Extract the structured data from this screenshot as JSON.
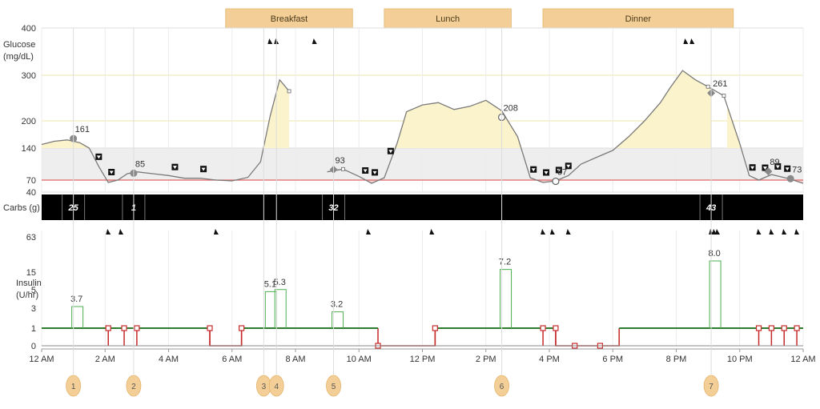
{
  "chart_data": {
    "type": "line",
    "meal_bands": [
      {
        "label": "Breakfast",
        "start": 6.0,
        "end": 10.0
      },
      {
        "label": "Lunch",
        "start": 11.0,
        "end": 15.0
      },
      {
        "label": "Dinner",
        "start": 16.0,
        "end": 22.0
      }
    ],
    "glucose": {
      "title": "Glucose",
      "unit": "(mg/dL)",
      "ticks": [
        {
          "value": 40,
          "label": "40",
          "color": "#c9a227"
        },
        {
          "value": 70,
          "label": "70",
          "color": "#c9a227"
        },
        {
          "value": 140,
          "label": "140",
          "color": "#333333"
        },
        {
          "value": 200,
          "label": "200",
          "color": "#333333"
        },
        {
          "value": 300,
          "label": "300",
          "color": "#333333"
        },
        {
          "value": 400,
          "label": "400",
          "color": "#c9a227"
        }
      ],
      "target_range": [
        70,
        140
      ],
      "low_line": 70,
      "series": [
        [
          0,
          148
        ],
        [
          0.4,
          155
        ],
        [
          0.8,
          158
        ],
        [
          1.2,
          152
        ],
        [
          1.5,
          140
        ],
        [
          1.8,
          100
        ],
        [
          2.1,
          64
        ],
        [
          2.4,
          70
        ],
        [
          2.7,
          84
        ],
        [
          3.0,
          88
        ],
        [
          3.5,
          84
        ],
        [
          4.0,
          80
        ],
        [
          4.5,
          74
        ],
        [
          5.0,
          74
        ],
        [
          5.5,
          70
        ],
        [
          6.0,
          68
        ],
        [
          6.5,
          76
        ],
        [
          6.9,
          110
        ],
        [
          7.2,
          210
        ],
        [
          7.5,
          290
        ],
        [
          7.8,
          265
        ],
        [
          9.0,
          88
        ],
        [
          9.5,
          94
        ],
        [
          10.0,
          78
        ],
        [
          10.4,
          62
        ],
        [
          10.8,
          75
        ],
        [
          11.2,
          150
        ],
        [
          11.5,
          220
        ],
        [
          12.0,
          235
        ],
        [
          12.5,
          240
        ],
        [
          13.0,
          225
        ],
        [
          13.5,
          232
        ],
        [
          14.0,
          245
        ],
        [
          14.5,
          222
        ],
        [
          15.0,
          165
        ],
        [
          15.4,
          75
        ],
        [
          15.8,
          64
        ],
        [
          16.2,
          68
        ],
        [
          16.6,
          80
        ],
        [
          17.0,
          105
        ],
        [
          17.5,
          120
        ],
        [
          18.0,
          135
        ],
        [
          18.5,
          165
        ],
        [
          19.0,
          200
        ],
        [
          19.5,
          240
        ],
        [
          19.8,
          272
        ],
        [
          20.2,
          310
        ],
        [
          20.6,
          290
        ],
        [
          21.0,
          275
        ],
        [
          21.5,
          255
        ],
        [
          22.0,
          150
        ],
        [
          22.3,
          80
        ],
        [
          22.6,
          70
        ],
        [
          23.0,
          82
        ],
        [
          23.5,
          74
        ],
        [
          24.0,
          62
        ]
      ],
      "fill_segments": [
        [
          0,
          1.5
        ],
        [
          6.8,
          7.8
        ],
        [
          11.1,
          15.1
        ],
        [
          17.5,
          21.1
        ],
        [
          21.6,
          22.1
        ]
      ],
      "low_fill_segments": [
        [
          1.9,
          2.5
        ],
        [
          5.2,
          6.2
        ],
        [
          10.2,
          10.7
        ],
        [
          15.4,
          16.4
        ],
        [
          22.4,
          24.0
        ]
      ],
      "readings": [
        {
          "time": 1.0,
          "value": 161,
          "label": "161",
          "symbol": "dot"
        },
        {
          "time": 2.9,
          "value": 85,
          "label": "85",
          "symbol": "dot"
        },
        {
          "time": 9.2,
          "value": 93,
          "label": "93",
          "symbol": "diamond"
        },
        {
          "time": 14.5,
          "value": 208,
          "label": "208",
          "symbol": "circle"
        },
        {
          "time": 16.2,
          "value": 67,
          "label": "67",
          "symbol": "circle"
        },
        {
          "time": 21.1,
          "value": 261,
          "label": "261",
          "symbol": "diamond"
        },
        {
          "time": 22.9,
          "value": 89,
          "label": "89",
          "symbol": "diamond"
        },
        {
          "time": 23.6,
          "value": 73,
          "label": "73",
          "symbol": "dot"
        }
      ],
      "low_markers": [
        1.8,
        2.2,
        4.2,
        5.1,
        10.2,
        10.5,
        11.0,
        15.5,
        15.9,
        16.3,
        16.6,
        22.4,
        22.8,
        23.2,
        23.5
      ],
      "bell_markers": [
        7.2,
        7.4,
        8.6,
        20.3,
        20.5
      ]
    },
    "carbs": {
      "label": "Carbs (g)",
      "entries": [
        {
          "time": 1.0,
          "value": "25"
        },
        {
          "time": 2.9,
          "value": "1"
        },
        {
          "time": 9.2,
          "value": "32"
        },
        {
          "time": 21.1,
          "value": "43"
        }
      ]
    },
    "insulin": {
      "title": "Insulin",
      "unit": "(U/hr)",
      "ticks": [
        "0",
        "1",
        "3",
        "5",
        "15",
        "63"
      ],
      "bell_markers": [
        2.1,
        2.5,
        5.5,
        10.3,
        12.3,
        15.8,
        16.1,
        16.6,
        21.1,
        21.2,
        21.3,
        22.6,
        23.0,
        23.4,
        23.8
      ],
      "basal_rate": 1,
      "basal_off": [
        [
          5.3,
          6.3
        ],
        [
          10.6,
          12.4
        ],
        [
          16.2,
          18.2
        ]
      ],
      "boluses": [
        {
          "time": 1.0,
          "value": 3.7,
          "label": "3.7"
        },
        {
          "time": 7.1,
          "value": 5.1,
          "label": "5.1"
        },
        {
          "time": 7.4,
          "value": 5.3,
          "label": "5.3"
        },
        {
          "time": 9.2,
          "value": 3.2,
          "label": "3.2"
        },
        {
          "time": 14.5,
          "value": 7.2,
          "label": "7.2"
        },
        {
          "time": 21.1,
          "value": 8.0,
          "label": "8.0"
        }
      ],
      "square_markers": [
        {
          "time": 2.1,
          "level": 1
        },
        {
          "time": 2.6,
          "level": 1
        },
        {
          "time": 3.0,
          "level": 1
        },
        {
          "time": 5.3,
          "level": 1
        },
        {
          "time": 6.3,
          "level": 1
        },
        {
          "time": 10.6,
          "level": 0
        },
        {
          "time": 12.4,
          "level": 1
        },
        {
          "time": 15.8,
          "level": 1
        },
        {
          "time": 16.2,
          "level": 1
        },
        {
          "time": 16.8,
          "level": 0
        },
        {
          "time": 17.6,
          "level": 0
        },
        {
          "time": 22.6,
          "level": 1
        },
        {
          "time": 23.0,
          "level": 1
        },
        {
          "time": 23.4,
          "level": 1
        },
        {
          "time": 23.8,
          "level": 1
        }
      ]
    },
    "x_axis": {
      "ticks": [
        "12 AM",
        "2 AM",
        "4 AM",
        "6 AM",
        "8 AM",
        "10 AM",
        "12 PM",
        "2 PM",
        "4 PM",
        "6 PM",
        "8 PM",
        "10 PM",
        "12 AM"
      ]
    },
    "event_markers": [
      {
        "time": 1.0,
        "label": "1"
      },
      {
        "time": 2.9,
        "label": "2"
      },
      {
        "time": 7.0,
        "label": "3"
      },
      {
        "time": 7.4,
        "label": "4"
      },
      {
        "time": 9.2,
        "label": "5"
      },
      {
        "time": 14.5,
        "label": "6"
      },
      {
        "time": 21.1,
        "label": "7"
      }
    ]
  },
  "colors": {
    "meal_band": "#f3cf97",
    "meal_band_border": "#e3b26a",
    "glucose_line": "#7a7a7a",
    "glucose_fill": "#fbf3cc",
    "low_fill": "#f6d6d6",
    "target_band": "#eeeeee",
    "low_line": "#e06666",
    "basal": "#2e7d2e",
    "bolus": "#4caf50",
    "basal_off": "#c62828",
    "event_circle": "#f3cf97",
    "carbs_bar": "#000000"
  }
}
